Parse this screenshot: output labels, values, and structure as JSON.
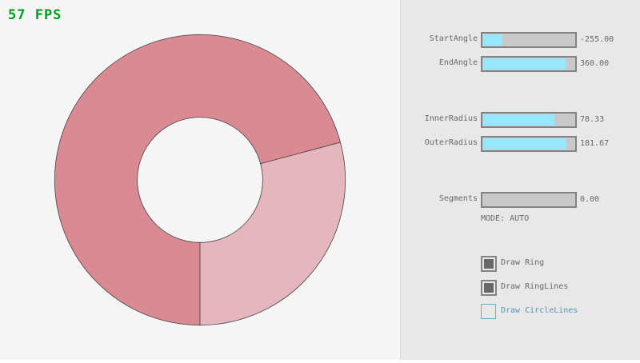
{
  "fps": "57 FPS",
  "ring": {
    "inner_radius": 78.33,
    "outer_radius": 181.67,
    "segments": [
      {
        "from_deg": 90,
        "to_deg": 345,
        "color": "#da8a93"
      },
      {
        "from_deg": -15,
        "to_deg": 90,
        "color": "#e5b6bc"
      }
    ],
    "outline": "#444444"
  },
  "controls": {
    "sliders": [
      {
        "label": "StartAngle",
        "value": "-255.00",
        "fraction": 0.21
      },
      {
        "label": "EndAngle",
        "value": "360.00",
        "fraction": 0.9
      },
      {
        "label": "InnerRadius",
        "value": "78.33",
        "fraction": 0.78
      },
      {
        "label": "OuterRadius",
        "value": "181.67",
        "fraction": 0.91
      },
      {
        "label": "Segments",
        "value": "0.00",
        "fraction": 0
      }
    ],
    "mode": "MODE: AUTO",
    "checkboxes": [
      {
        "label": "Draw Ring",
        "checked": true
      },
      {
        "label": "Draw RingLines",
        "checked": true
      },
      {
        "label": "Draw CircleLines",
        "checked": false
      }
    ]
  },
  "colors": {
    "slider_fill": "#97e8ff",
    "fps": "#00a01e"
  }
}
